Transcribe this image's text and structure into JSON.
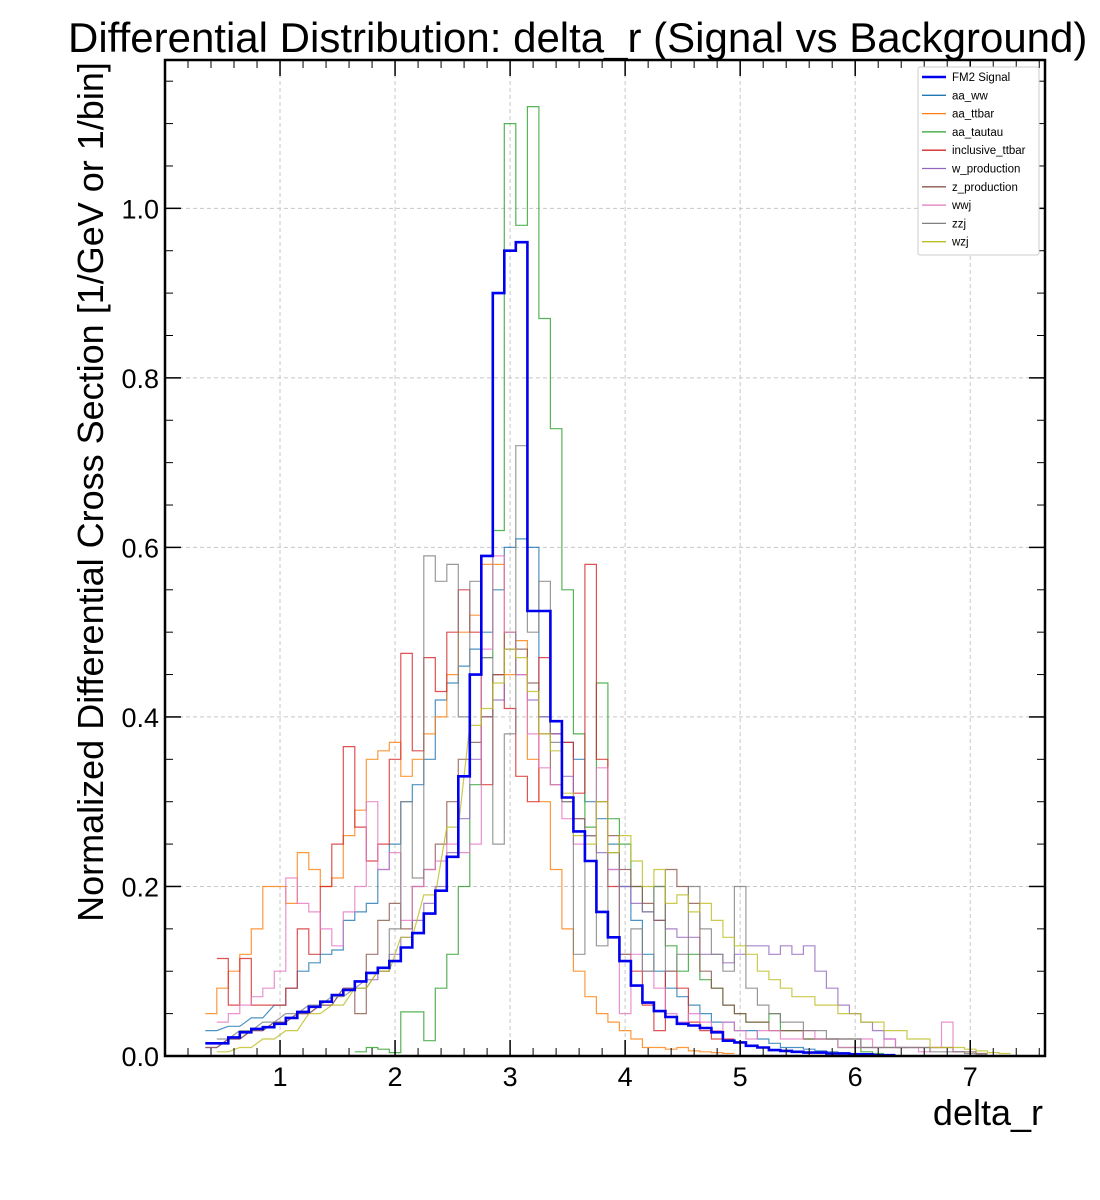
{
  "chart_data": {
    "type": "line",
    "style": "step-histogram",
    "title": "Differential Distribution: delta_r (Signal vs Background)",
    "xlabel": "delta_r",
    "ylabel": "Normalized Differential Cross Section [1/GeV or 1/bin]",
    "xlim": [
      0,
      7.65
    ],
    "ylim": [
      0,
      1.175
    ],
    "xticks": [
      1,
      2,
      3,
      4,
      5,
      6,
      7
    ],
    "yticks": [
      0.0,
      0.2,
      0.4,
      0.6,
      0.8,
      1.0
    ],
    "grid": true,
    "legend_position": "top-right",
    "series": [
      {
        "name": "FM2 Signal",
        "color": "#0000ee",
        "width": 2.6,
        "x": [
          0.35,
          0.45,
          0.55,
          0.65,
          0.75,
          0.85,
          0.95,
          1.05,
          1.15,
          1.25,
          1.35,
          1.45,
          1.55,
          1.65,
          1.75,
          1.85,
          1.95,
          2.05,
          2.15,
          2.25,
          2.35,
          2.45,
          2.55,
          2.65,
          2.75,
          2.85,
          2.95,
          3.05,
          3.15,
          3.25,
          3.35,
          3.45,
          3.55,
          3.65,
          3.75,
          3.85,
          3.95,
          4.05,
          4.15,
          4.25,
          4.35,
          4.45,
          4.55,
          4.65,
          4.75,
          4.85,
          4.95,
          5.05,
          5.15,
          5.25,
          5.35,
          5.45,
          5.55,
          5.65,
          5.75,
          5.85,
          5.95,
          6.05,
          6.15,
          6.25
        ],
        "values": [
          0.015,
          0.015,
          0.022,
          0.028,
          0.032,
          0.034,
          0.038,
          0.045,
          0.052,
          0.058,
          0.064,
          0.072,
          0.078,
          0.088,
          0.098,
          0.104,
          0.112,
          0.128,
          0.145,
          0.168,
          0.195,
          0.235,
          0.33,
          0.45,
          0.59,
          0.9,
          0.95,
          0.96,
          0.525,
          0.525,
          0.395,
          0.305,
          0.265,
          0.23,
          0.17,
          0.14,
          0.112,
          0.083,
          0.063,
          0.053,
          0.046,
          0.038,
          0.036,
          0.033,
          0.028,
          0.018,
          0.016,
          0.012,
          0.01,
          0.007,
          0.006,
          0.005,
          0.004,
          0.004,
          0.003,
          0.003,
          0.002,
          0.002,
          0.001,
          0.001
        ]
      },
      {
        "name": "aa_ww",
        "color": "#1f77b4",
        "width": 1.2,
        "x": [
          0.35,
          0.55,
          0.75,
          0.95,
          1.05,
          1.15,
          1.25,
          1.35,
          1.45,
          1.55,
          1.65,
          1.75,
          1.85,
          1.95,
          2.05,
          2.15,
          2.25,
          2.35,
          2.45,
          2.55,
          2.65,
          2.75,
          2.85,
          2.95,
          3.05,
          3.15,
          3.25,
          3.35,
          3.45,
          3.55,
          3.65,
          3.75,
          3.85,
          3.95,
          4.05,
          4.15,
          4.25,
          4.35,
          4.45,
          4.55,
          4.65,
          4.75,
          4.85,
          4.95,
          5.05,
          5.15,
          5.25,
          5.35,
          5.45,
          5.55,
          5.65,
          5.75,
          5.85,
          5.95
        ],
        "values": [
          0.03,
          0.035,
          0.045,
          0.06,
          0.08,
          0.1,
          0.11,
          0.12,
          0.125,
          0.16,
          0.17,
          0.18,
          0.22,
          0.25,
          0.3,
          0.32,
          0.35,
          0.42,
          0.44,
          0.46,
          0.48,
          0.5,
          0.55,
          0.6,
          0.61,
          0.6,
          0.4,
          0.38,
          0.37,
          0.35,
          0.3,
          0.28,
          0.25,
          0.2,
          0.16,
          0.12,
          0.1,
          0.08,
          0.07,
          0.06,
          0.05,
          0.04,
          0.04,
          0.03,
          0.03,
          0.02,
          0.015,
          0.01,
          0.01,
          0.008,
          0.006,
          0.005,
          0.004,
          0.003
        ]
      },
      {
        "name": "aa_ttbar",
        "color": "#ff7f0e",
        "width": 1.2,
        "x": [
          0.35,
          0.45,
          0.55,
          0.65,
          0.75,
          0.85,
          0.95,
          1.05,
          1.15,
          1.25,
          1.35,
          1.45,
          1.55,
          1.65,
          1.75,
          1.85,
          1.95,
          2.05,
          2.15,
          2.25,
          2.35,
          2.45,
          2.55,
          2.65,
          2.75,
          2.85,
          2.95,
          3.05,
          3.15,
          3.25,
          3.35,
          3.45,
          3.55,
          3.65,
          3.75,
          3.85,
          3.95,
          4.05,
          4.15,
          4.25,
          4.35,
          4.45,
          4.55,
          4.65,
          4.75,
          4.85
        ],
        "values": [
          0.05,
          0.08,
          0.1,
          0.12,
          0.15,
          0.2,
          0.2,
          0.18,
          0.24,
          0.22,
          0.2,
          0.21,
          0.26,
          0.29,
          0.35,
          0.36,
          0.37,
          0.33,
          0.35,
          0.38,
          0.4,
          0.45,
          0.5,
          0.52,
          0.58,
          0.58,
          0.45,
          0.49,
          0.35,
          0.3,
          0.22,
          0.15,
          0.1,
          0.07,
          0.05,
          0.04,
          0.03,
          0.02,
          0.01,
          0.01,
          0.008,
          0.01,
          0.006,
          0.005,
          0.004,
          0.003
        ]
      },
      {
        "name": "aa_tautau",
        "color": "#2ca02c",
        "width": 1.2,
        "x": [
          1.65,
          1.75,
          1.85,
          1.95,
          2.05,
          2.15,
          2.25,
          2.35,
          2.45,
          2.55,
          2.65,
          2.75,
          2.85,
          2.95,
          3.05,
          3.15,
          3.25,
          3.35,
          3.45,
          3.55,
          3.65,
          3.75,
          3.85,
          3.95,
          4.05,
          4.15,
          4.25,
          4.35,
          4.45,
          4.55,
          4.65,
          4.75,
          4.85,
          4.95,
          5.05,
          5.15,
          5.25,
          5.35,
          5.45,
          5.55,
          5.65,
          5.75,
          5.85,
          5.95,
          6.05,
          6.15
        ],
        "values": [
          0.005,
          0.01,
          0.008,
          0.004,
          0.052,
          0.052,
          0.018,
          0.08,
          0.12,
          0.2,
          0.32,
          0.47,
          0.62,
          1.1,
          0.98,
          1.12,
          0.87,
          0.74,
          0.55,
          0.38,
          0.27,
          0.44,
          0.28,
          0.25,
          0.2,
          0.17,
          0.2,
          0.13,
          0.1,
          0.12,
          0.09,
          0.08,
          0.06,
          0.05,
          0.04,
          0.04,
          0.05,
          0.03,
          0.03,
          0.02,
          0.02,
          0.02,
          0.01,
          0.01,
          0.005,
          0.003
        ]
      },
      {
        "name": "inclusive_ttbar",
        "color": "#d62728",
        "width": 1.2,
        "x": [
          0.45,
          0.55,
          0.65,
          0.75,
          0.85,
          0.95,
          1.05,
          1.15,
          1.25,
          1.35,
          1.45,
          1.55,
          1.65,
          1.75,
          1.85,
          1.95,
          2.05,
          2.15,
          2.25,
          2.35,
          2.45,
          2.55,
          2.65,
          2.75,
          2.85,
          2.95,
          3.05,
          3.15,
          3.25,
          3.35,
          3.45,
          3.55,
          3.65,
          3.75,
          3.85,
          3.95,
          4.05,
          4.15,
          4.25,
          4.35,
          4.45,
          4.55,
          4.65,
          4.75,
          4.85
        ],
        "values": [
          0.115,
          0.06,
          0.115,
          0.06,
          0.06,
          0.06,
          0.08,
          0.15,
          0.12,
          0.2,
          0.25,
          0.365,
          0.27,
          0.23,
          0.25,
          0.35,
          0.475,
          0.36,
          0.47,
          0.43,
          0.5,
          0.55,
          0.5,
          0.32,
          0.45,
          0.41,
          0.33,
          0.3,
          0.47,
          0.38,
          0.37,
          0.31,
          0.58,
          0.35,
          0.2,
          0.12,
          0.1,
          0.06,
          0.03,
          0.1,
          0.08,
          0.04,
          0.03,
          0.02,
          0.02
        ]
      },
      {
        "name": "w_production",
        "color": "#9467bd",
        "width": 1.2,
        "x": [
          0.35,
          0.55,
          0.75,
          0.95,
          1.15,
          1.35,
          1.55,
          1.75,
          1.85,
          1.95,
          2.05,
          2.15,
          2.25,
          2.35,
          2.45,
          2.55,
          2.65,
          2.75,
          2.85,
          2.95,
          3.05,
          3.15,
          3.25,
          3.35,
          3.45,
          3.55,
          3.65,
          3.75,
          3.85,
          3.95,
          4.05,
          4.15,
          4.25,
          4.35,
          4.45,
          4.55,
          4.65,
          4.75,
          4.85,
          4.95,
          5.05,
          5.15,
          5.25,
          5.35,
          5.45,
          5.55,
          5.65,
          5.75,
          5.85,
          5.95,
          6.05,
          6.15,
          6.25,
          6.35
        ],
        "values": [
          0.01,
          0.02,
          0.03,
          0.04,
          0.05,
          0.06,
          0.08,
          0.09,
          0.1,
          0.12,
          0.14,
          0.16,
          0.18,
          0.2,
          0.24,
          0.28,
          0.35,
          0.4,
          0.42,
          0.48,
          0.45,
          0.42,
          0.4,
          0.38,
          0.33,
          0.28,
          0.26,
          0.24,
          0.22,
          0.2,
          0.18,
          0.17,
          0.16,
          0.15,
          0.14,
          0.14,
          0.12,
          0.12,
          0.11,
          0.12,
          0.13,
          0.13,
          0.12,
          0.13,
          0.12,
          0.13,
          0.1,
          0.08,
          0.06,
          0.05,
          0.04,
          0.03,
          0.02,
          0.01
        ]
      },
      {
        "name": "z_production",
        "color": "#8c564b",
        "width": 1.2,
        "x": [
          0.35,
          0.55,
          0.75,
          0.95,
          1.15,
          1.35,
          1.55,
          1.65,
          1.75,
          1.85,
          1.95,
          2.05,
          2.15,
          2.25,
          2.35,
          2.45,
          2.55,
          2.65,
          2.75,
          2.85,
          2.95,
          3.05,
          3.15,
          3.25,
          3.35,
          3.45,
          3.55,
          3.65,
          3.75,
          3.85,
          3.95,
          4.05,
          4.15,
          4.25,
          4.35,
          4.45,
          4.55,
          4.65,
          4.75,
          4.85,
          4.95,
          5.05,
          5.15,
          5.25,
          5.35,
          5.45,
          5.55,
          5.65,
          5.75,
          5.85,
          5.95,
          6.05,
          6.15,
          6.25,
          6.35,
          6.45,
          6.55,
          6.65,
          6.75,
          6.85,
          6.95,
          7.05
        ],
        "values": [
          0.01,
          0.02,
          0.03,
          0.04,
          0.05,
          0.06,
          0.08,
          0.05,
          0.12,
          0.16,
          0.18,
          0.15,
          0.2,
          0.22,
          0.25,
          0.3,
          0.35,
          0.37,
          0.4,
          0.45,
          0.5,
          0.48,
          0.44,
          0.38,
          0.32,
          0.3,
          0.28,
          0.26,
          0.3,
          0.26,
          0.22,
          0.2,
          0.18,
          0.16,
          0.22,
          0.2,
          0.18,
          0.1,
          0.08,
          0.06,
          0.05,
          0.04,
          0.04,
          0.03,
          0.03,
          0.03,
          0.02,
          0.02,
          0.02,
          0.02,
          0.02,
          0.01,
          0.01,
          0.01,
          0.01,
          0.01,
          0.01,
          0.01,
          0.01,
          0.005,
          0.005,
          0.003
        ]
      },
      {
        "name": "wwj",
        "color": "#e377c2",
        "width": 1.2,
        "x": [
          0.45,
          0.55,
          0.65,
          0.75,
          0.85,
          0.95,
          1.05,
          1.15,
          1.25,
          1.35,
          1.45,
          1.55,
          1.65,
          1.75,
          1.85,
          1.95,
          2.05,
          2.15,
          2.25,
          2.35,
          2.45,
          2.55,
          2.65,
          2.75,
          2.85,
          2.95,
          3.05,
          3.15,
          3.25,
          3.35,
          3.45,
          3.55,
          3.65,
          3.75,
          3.85,
          3.95,
          4.05,
          4.15,
          4.25,
          4.35,
          4.45,
          4.55,
          4.65,
          4.75,
          4.85,
          4.95,
          5.05,
          5.15,
          5.25,
          5.35,
          5.45,
          5.55,
          5.65,
          5.75,
          5.85,
          5.95,
          6.05,
          6.15,
          6.25,
          6.35,
          6.45,
          6.55,
          6.65,
          6.75,
          6.85
        ],
        "values": [
          0.04,
          0.05,
          0.06,
          0.07,
          0.08,
          0.1,
          0.21,
          0.18,
          0.17,
          0.15,
          0.13,
          0.17,
          0.2,
          0.3,
          0.22,
          0.24,
          0.16,
          0.2,
          0.22,
          0.23,
          0.25,
          0.24,
          0.25,
          0.48,
          0.59,
          0.5,
          0.45,
          0.38,
          0.34,
          0.32,
          0.28,
          0.25,
          0.26,
          0.34,
          0.22,
          0.05,
          0.12,
          0.1,
          0.08,
          0.05,
          0.04,
          0.05,
          0.04,
          0.03,
          0.04,
          0.03,
          0.02,
          0.03,
          0.03,
          0.02,
          0.02,
          0.03,
          0.02,
          0.02,
          0.01,
          0.01,
          0.02,
          0.01,
          0.02,
          0.01,
          0.01,
          0.005,
          0.01,
          0.04,
          0.005
        ]
      },
      {
        "name": "zzj",
        "color": "#7f7f7f",
        "width": 1.2,
        "x": [
          0.45,
          0.65,
          0.85,
          1.05,
          1.25,
          1.45,
          1.65,
          1.85,
          1.95,
          2.05,
          2.15,
          2.25,
          2.35,
          2.45,
          2.55,
          2.65,
          2.75,
          2.85,
          2.95,
          3.05,
          3.15,
          3.25,
          3.35,
          3.45,
          3.55,
          3.65,
          3.75,
          3.85,
          3.95,
          4.05,
          4.15,
          4.25,
          4.35,
          4.45,
          4.55,
          4.65,
          4.75,
          4.85,
          4.95,
          5.05,
          5.15,
          5.25,
          5.35,
          5.45,
          5.55,
          5.65,
          5.75,
          5.85,
          5.95,
          6.05,
          6.15,
          6.25,
          6.35,
          6.45,
          6.55,
          6.65,
          6.75,
          6.85,
          6.95,
          7.05
        ],
        "values": [
          0.02,
          0.03,
          0.04,
          0.05,
          0.06,
          0.07,
          0.08,
          0.1,
          0.15,
          0.3,
          0.21,
          0.59,
          0.56,
          0.58,
          0.4,
          0.56,
          0.47,
          0.25,
          0.38,
          0.72,
          0.5,
          0.56,
          0.37,
          0.3,
          0.12,
          0.26,
          0.13,
          0.24,
          0.12,
          0.15,
          0.1,
          0.2,
          0.1,
          0.12,
          0.2,
          0.15,
          0.12,
          0.1,
          0.2,
          0.08,
          0.06,
          0.05,
          0.04,
          0.04,
          0.03,
          0.03,
          0.02,
          0.02,
          0.02,
          0.01,
          0.01,
          0.01,
          0.01,
          0.01,
          0.01,
          0.005,
          0.005,
          0.005,
          0.003,
          0.002
        ]
      },
      {
        "name": "wzj",
        "color": "#bcbd22",
        "width": 1.2,
        "x": [
          0.45,
          0.65,
          0.85,
          1.05,
          1.25,
          1.45,
          1.65,
          1.85,
          2.05,
          2.25,
          2.45,
          2.65,
          2.75,
          2.85,
          2.95,
          3.05,
          3.15,
          3.25,
          3.35,
          3.45,
          3.55,
          3.65,
          3.75,
          3.85,
          3.95,
          4.05,
          4.15,
          4.25,
          4.35,
          4.45,
          4.55,
          4.65,
          4.75,
          4.85,
          4.95,
          5.05,
          5.15,
          5.25,
          5.35,
          5.45,
          5.55,
          5.65,
          5.75,
          5.85,
          5.95,
          6.05,
          6.15,
          6.25,
          6.35,
          6.45,
          6.55,
          6.65,
          6.75,
          6.85,
          6.95,
          7.05,
          7.15,
          7.25
        ],
        "values": [
          0.005,
          0.01,
          0.02,
          0.03,
          0.05,
          0.06,
          0.08,
          0.1,
          0.14,
          0.19,
          0.27,
          0.39,
          0.41,
          0.44,
          0.48,
          0.47,
          0.43,
          0.38,
          0.36,
          0.31,
          0.26,
          0.25,
          0.3,
          0.24,
          0.26,
          0.23,
          0.2,
          0.22,
          0.18,
          0.19,
          0.17,
          0.18,
          0.16,
          0.14,
          0.13,
          0.12,
          0.1,
          0.09,
          0.08,
          0.07,
          0.07,
          0.06,
          0.06,
          0.05,
          0.05,
          0.04,
          0.04,
          0.03,
          0.03,
          0.02,
          0.02,
          0.01,
          0.01,
          0.01,
          0.008,
          0.006,
          0.004,
          0.003
        ]
      }
    ]
  }
}
